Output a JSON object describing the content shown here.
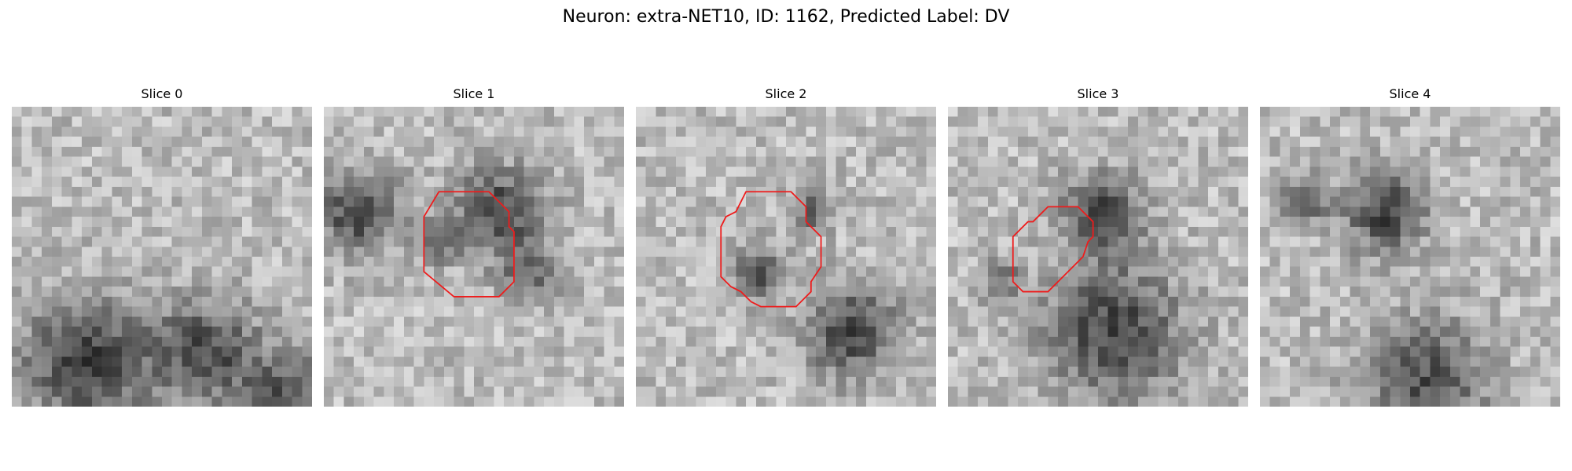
{
  "title": "Neuron: extra-NET10, ID: 1162, Predicted Label: DV",
  "slices": [
    {
      "label": "Slice 0",
      "dark_blobs": [
        [
          7,
          25,
          20,
          1.0
        ],
        [
          19,
          24,
          13,
          0.9
        ],
        [
          27,
          28,
          9,
          0.8
        ]
      ],
      "roi": []
    },
    {
      "label": "Slice 1",
      "dark_blobs": [
        [
          3,
          10,
          8,
          1.0
        ],
        [
          11,
          13,
          2.5,
          0.6
        ],
        [
          17,
          10,
          9,
          1.0
        ],
        [
          20,
          16,
          4,
          0.7
        ]
      ],
      "roi": [
        [
          11.5,
          8.5
        ],
        [
          16.5,
          8.5
        ],
        [
          18.5,
          10.5
        ],
        [
          18.5,
          12
        ],
        [
          19,
          12.5
        ],
        [
          19,
          17.5
        ],
        [
          17.5,
          19
        ],
        [
          13,
          19
        ],
        [
          10,
          16.5
        ],
        [
          10,
          11
        ]
      ]
    },
    {
      "label": "Slice 2",
      "dark_blobs": [
        [
          12,
          16,
          3,
          0.9
        ],
        [
          17,
          10,
          2,
          0.7
        ],
        [
          21,
          22,
          10,
          1.0
        ]
      ],
      "roi": [
        [
          11,
          8.5
        ],
        [
          15.5,
          8.5
        ],
        [
          17,
          10
        ],
        [
          17,
          11.5
        ],
        [
          18.5,
          13
        ],
        [
          18.5,
          16
        ],
        [
          17.5,
          17.5
        ],
        [
          17.5,
          18.5
        ],
        [
          16,
          20
        ],
        [
          12.5,
          20
        ],
        [
          11.5,
          19.5
        ],
        [
          10.5,
          18.5
        ],
        [
          9.5,
          18
        ],
        [
          8.5,
          17
        ],
        [
          8.5,
          12
        ],
        [
          9,
          11
        ],
        [
          10,
          10.5
        ]
      ]
    },
    {
      "label": "Slice 3",
      "dark_blobs": [
        [
          15,
          10,
          7,
          1.0
        ],
        [
          16,
          22,
          22,
          1.0
        ],
        [
          5,
          17,
          2,
          0.6
        ]
      ],
      "roi": [
        [
          10,
          10
        ],
        [
          13,
          10
        ],
        [
          14.5,
          11.5
        ],
        [
          14.5,
          13
        ],
        [
          14,
          13.5
        ],
        [
          13.5,
          15
        ],
        [
          11.5,
          17
        ],
        [
          10,
          18.5
        ],
        [
          7.5,
          18.5
        ],
        [
          6.5,
          17.5
        ],
        [
          6.5,
          13
        ],
        [
          8,
          11.5
        ],
        [
          8.5,
          11.5
        ]
      ]
    },
    {
      "label": "Slice 4",
      "dark_blobs": [
        [
          12,
          10,
          8,
          1.0
        ],
        [
          4,
          9,
          3,
          0.7
        ],
        [
          16,
          27,
          18,
          0.9
        ]
      ],
      "roi": []
    }
  ],
  "colors": {
    "roi_outline": "#ee1c1c",
    "colormap": "grayscale"
  }
}
